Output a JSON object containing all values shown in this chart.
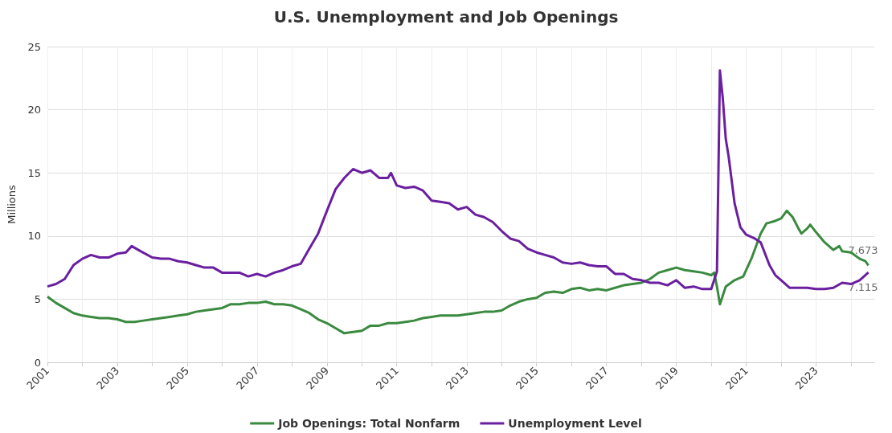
{
  "chart_data": {
    "type": "line",
    "title": "U.S. Unemployment and Job Openings",
    "ylabel": "Millions",
    "xlim": [
      "2001-01",
      "2024-09"
    ],
    "xticks": [
      {
        "value": "2001-01",
        "label": "2001"
      },
      {
        "value": "2002-01",
        "label": null
      },
      {
        "value": "2003-01",
        "label": "2003"
      },
      {
        "value": "2004-01",
        "label": null
      },
      {
        "value": "2005-01",
        "label": "2005"
      },
      {
        "value": "2006-01",
        "label": null
      },
      {
        "value": "2007-01",
        "label": "2007"
      },
      {
        "value": "2008-01",
        "label": null
      },
      {
        "value": "2009-01",
        "label": "2009"
      },
      {
        "value": "2010-01",
        "label": null
      },
      {
        "value": "2011-01",
        "label": "2011"
      },
      {
        "value": "2012-01",
        "label": null
      },
      {
        "value": "2013-01",
        "label": "2013"
      },
      {
        "value": "2014-01",
        "label": null
      },
      {
        "value": "2015-01",
        "label": "2015"
      },
      {
        "value": "2016-01",
        "label": null
      },
      {
        "value": "2017-01",
        "label": "2017"
      },
      {
        "value": "2018-01",
        "label": null
      },
      {
        "value": "2019-01",
        "label": "2019"
      },
      {
        "value": "2020-01",
        "label": null
      },
      {
        "value": "2021-01",
        "label": "2021"
      },
      {
        "value": "2022-01",
        "label": null
      },
      {
        "value": "2023-01",
        "label": "2023"
      },
      {
        "value": "2024-01",
        "label": null
      }
    ],
    "ylim": [
      0,
      25
    ],
    "yticks": [
      0,
      5,
      10,
      15,
      20,
      25
    ],
    "grid": true,
    "legend": "bottom",
    "marker": "none",
    "line_style": "solid",
    "series": [
      {
        "name": "Job Openings: Total Nonfarm",
        "color": "#3a8a3f",
        "x": [
          "2001-01",
          "2001-04",
          "2001-07",
          "2001-10",
          "2002-01",
          "2002-04",
          "2002-07",
          "2002-10",
          "2003-01",
          "2003-04",
          "2003-07",
          "2003-10",
          "2004-01",
          "2004-04",
          "2004-07",
          "2004-10",
          "2005-01",
          "2005-04",
          "2005-07",
          "2005-10",
          "2006-01",
          "2006-04",
          "2006-07",
          "2006-10",
          "2007-01",
          "2007-04",
          "2007-07",
          "2007-10",
          "2008-01",
          "2008-04",
          "2008-07",
          "2008-10",
          "2009-01",
          "2009-04",
          "2009-07",
          "2009-10",
          "2010-01",
          "2010-04",
          "2010-07",
          "2010-10",
          "2011-01",
          "2011-04",
          "2011-07",
          "2011-10",
          "2012-01",
          "2012-04",
          "2012-07",
          "2012-10",
          "2013-01",
          "2013-04",
          "2013-07",
          "2013-10",
          "2014-01",
          "2014-04",
          "2014-07",
          "2014-10",
          "2015-01",
          "2015-04",
          "2015-07",
          "2015-10",
          "2016-01",
          "2016-04",
          "2016-07",
          "2016-10",
          "2017-01",
          "2017-04",
          "2017-07",
          "2017-10",
          "2018-01",
          "2018-04",
          "2018-07",
          "2018-10",
          "2019-01",
          "2019-04",
          "2019-07",
          "2019-10",
          "2020-01",
          "2020-02",
          "2020-03",
          "2020-04",
          "2020-06",
          "2020-09",
          "2020-12",
          "2021-03",
          "2021-06",
          "2021-08",
          "2021-11",
          "2022-01",
          "2022-03",
          "2022-05",
          "2022-07",
          "2022-08",
          "2022-10",
          "2022-11",
          "2023-01",
          "2023-04",
          "2023-07",
          "2023-09",
          "2023-10",
          "2024-01",
          "2024-04",
          "2024-06",
          "2024-07"
        ],
        "values": [
          5.2,
          4.7,
          4.3,
          3.9,
          3.7,
          3.6,
          3.5,
          3.5,
          3.4,
          3.2,
          3.2,
          3.3,
          3.4,
          3.5,
          3.6,
          3.7,
          3.8,
          4.0,
          4.1,
          4.2,
          4.3,
          4.6,
          4.6,
          4.7,
          4.7,
          4.8,
          4.6,
          4.6,
          4.5,
          4.2,
          3.9,
          3.4,
          3.1,
          2.7,
          2.3,
          2.4,
          2.5,
          2.9,
          2.9,
          3.1,
          3.1,
          3.2,
          3.3,
          3.5,
          3.6,
          3.7,
          3.7,
          3.7,
          3.8,
          3.9,
          4.0,
          4.0,
          4.1,
          4.5,
          4.8,
          5.0,
          5.1,
          5.5,
          5.6,
          5.5,
          5.8,
          5.9,
          5.7,
          5.8,
          5.7,
          5.9,
          6.1,
          6.2,
          6.3,
          6.6,
          7.1,
          7.3,
          7.5,
          7.3,
          7.2,
          7.1,
          6.9,
          7.1,
          6.0,
          4.6,
          6.0,
          6.5,
          6.8,
          8.3,
          10.2,
          11.0,
          11.2,
          11.4,
          12.0,
          11.5,
          10.6,
          10.2,
          10.6,
          10.9,
          10.3,
          9.5,
          8.9,
          9.2,
          8.8,
          8.7,
          8.2,
          8.0,
          7.673
        ]
      },
      {
        "name": "Unemployment Level",
        "color": "#6a1fa0",
        "x": [
          "2001-01",
          "2001-04",
          "2001-07",
          "2001-10",
          "2002-01",
          "2002-04",
          "2002-07",
          "2002-10",
          "2003-01",
          "2003-04",
          "2003-06",
          "2003-09",
          "2004-01",
          "2004-04",
          "2004-07",
          "2004-10",
          "2005-01",
          "2005-04",
          "2005-07",
          "2005-10",
          "2006-01",
          "2006-04",
          "2006-07",
          "2006-10",
          "2007-01",
          "2007-04",
          "2007-07",
          "2007-10",
          "2008-01",
          "2008-04",
          "2008-07",
          "2008-10",
          "2009-01",
          "2009-04",
          "2009-07",
          "2009-10",
          "2010-01",
          "2010-04",
          "2010-07",
          "2010-10",
          "2010-11",
          "2011-01",
          "2011-04",
          "2011-07",
          "2011-10",
          "2012-01",
          "2012-04",
          "2012-07",
          "2012-10",
          "2013-01",
          "2013-04",
          "2013-07",
          "2013-10",
          "2014-01",
          "2014-04",
          "2014-07",
          "2014-10",
          "2015-01",
          "2015-04",
          "2015-07",
          "2015-10",
          "2016-01",
          "2016-04",
          "2016-07",
          "2016-10",
          "2017-01",
          "2017-04",
          "2017-07",
          "2017-10",
          "2018-01",
          "2018-04",
          "2018-07",
          "2018-10",
          "2019-01",
          "2019-04",
          "2019-07",
          "2019-10",
          "2020-01",
          "2020-03",
          "2020-04",
          "2020-05",
          "2020-06",
          "2020-07",
          "2020-09",
          "2020-11",
          "2021-01",
          "2021-04",
          "2021-06",
          "2021-09",
          "2021-11",
          "2022-01",
          "2022-04",
          "2022-07",
          "2022-10",
          "2023-01",
          "2023-04",
          "2023-07",
          "2023-10",
          "2024-01",
          "2024-04",
          "2024-07"
        ],
        "values": [
          6.0,
          6.2,
          6.6,
          7.7,
          8.2,
          8.5,
          8.3,
          8.3,
          8.6,
          8.7,
          9.2,
          8.8,
          8.3,
          8.2,
          8.2,
          8.0,
          7.9,
          7.7,
          7.5,
          7.5,
          7.1,
          7.1,
          7.1,
          6.8,
          7.0,
          6.8,
          7.1,
          7.3,
          7.6,
          7.8,
          9.0,
          10.2,
          12.0,
          13.7,
          14.6,
          15.3,
          15.0,
          15.2,
          14.6,
          14.6,
          15.0,
          14.0,
          13.8,
          13.9,
          13.6,
          12.8,
          12.7,
          12.6,
          12.1,
          12.3,
          11.7,
          11.5,
          11.1,
          10.4,
          9.8,
          9.6,
          9.0,
          8.7,
          8.5,
          8.3,
          7.9,
          7.8,
          7.9,
          7.7,
          7.6,
          7.6,
          7.0,
          7.0,
          6.6,
          6.5,
          6.3,
          6.3,
          6.1,
          6.5,
          5.9,
          6.0,
          5.8,
          5.8,
          7.2,
          23.1,
          20.9,
          17.7,
          16.3,
          12.6,
          10.7,
          10.1,
          9.8,
          9.5,
          7.7,
          6.9,
          6.5,
          5.9,
          5.9,
          5.9,
          5.8,
          5.8,
          5.9,
          6.3,
          6.2,
          6.5,
          7.115
        ]
      }
    ],
    "annotations": [
      {
        "text": "7.673",
        "x": "2024-07",
        "y": 7.673
      },
      {
        "text": "7.115",
        "x": "2024-07",
        "y": 7.115
      }
    ]
  }
}
